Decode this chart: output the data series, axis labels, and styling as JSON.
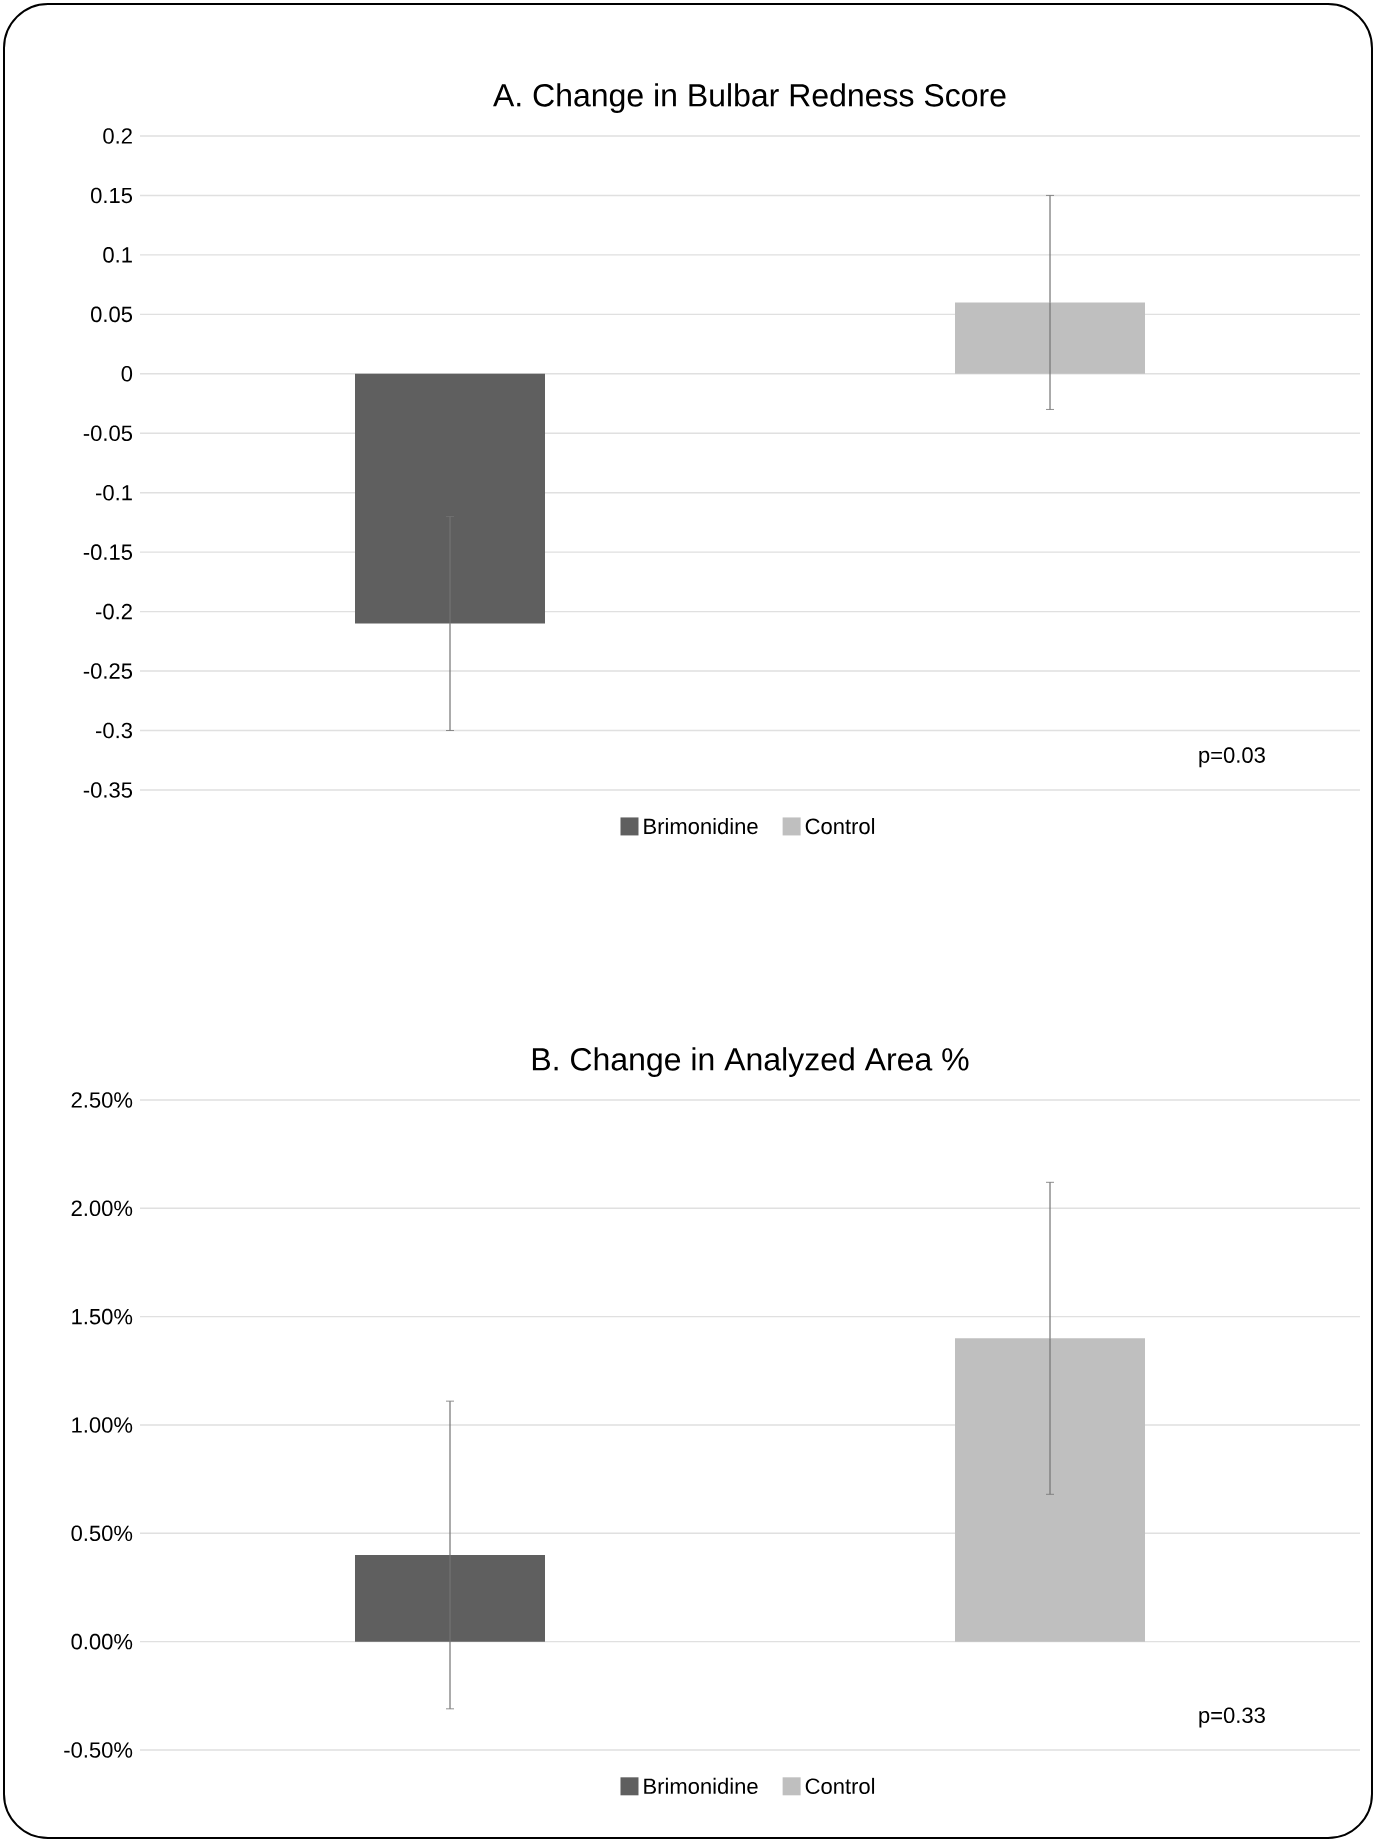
{
  "chart_data": [
    {
      "type": "bar",
      "title": "A. Change in Bulbar Redness Score",
      "categories": [
        null
      ],
      "series": [
        {
          "name": "Brimonidine",
          "color": "#5f5f5f",
          "values": [
            -0.21
          ],
          "errors": [
            0.09
          ]
        },
        {
          "name": "Control",
          "color": "#bfbfbf",
          "values": [
            0.06
          ],
          "errors": [
            0.09
          ]
        }
      ],
      "ylim": [
        -0.35,
        0.2
      ],
      "yticks": [
        -0.35,
        -0.3,
        -0.25,
        -0.2,
        -0.15,
        -0.1,
        -0.05,
        0,
        0.05,
        0.1,
        0.15,
        0.2
      ],
      "grid": "y",
      "legend": "bottom",
      "annotations": [
        "p=0.03"
      ]
    },
    {
      "type": "bar",
      "title": "B. Change in Analyzed Area %",
      "categories": [
        null
      ],
      "series": [
        {
          "name": "Brimonidine",
          "color": "#5f5f5f",
          "values": [
            0.4
          ],
          "errors": [
            0.71
          ]
        },
        {
          "name": "Control",
          "color": "#bfbfbf",
          "values": [
            1.4
          ],
          "errors": [
            0.72
          ]
        }
      ],
      "ylim": [
        -0.5,
        2.5
      ],
      "yticks": [
        {
          "value": -0.5,
          "label": "-0.50%"
        },
        {
          "value": 0,
          "label": "0.00%"
        },
        {
          "value": 0.5,
          "label": "0.50%"
        },
        {
          "value": 1,
          "label": "1.00%"
        },
        {
          "value": 1.5,
          "label": "1.50%"
        },
        {
          "value": 2,
          "label": "2.00%"
        },
        {
          "value": 2.5,
          "label": "2.50%"
        }
      ],
      "grid": "y",
      "legend": "bottom",
      "annotations": [
        "p=0.33"
      ]
    }
  ]
}
